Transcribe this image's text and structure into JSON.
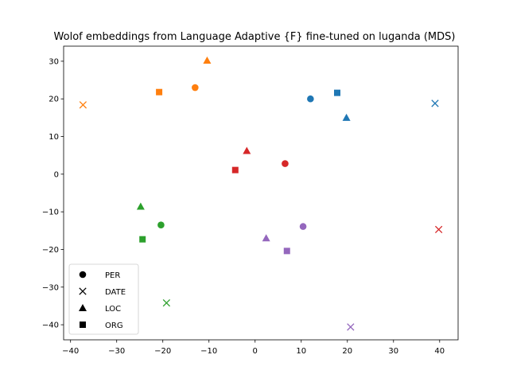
{
  "chart_data": {
    "type": "scatter",
    "title": "Wolof embeddings from Language Adaptive {F} fine-tuned on luganda (MDS)",
    "xlabel": "",
    "ylabel": "",
    "xlim": [
      -41.5,
      44
    ],
    "ylim": [
      -44,
      34
    ],
    "xticks": [
      -40,
      -30,
      -20,
      -10,
      0,
      10,
      20,
      30,
      40
    ],
    "yticks": [
      -40,
      -30,
      -20,
      -10,
      0,
      10,
      20,
      30
    ],
    "grid": false,
    "legend_position": "lower-left",
    "legend": [
      {
        "label": "PER",
        "marker": "circle"
      },
      {
        "label": "DATE",
        "marker": "x"
      },
      {
        "label": "LOC",
        "marker": "triangle"
      },
      {
        "label": "ORG",
        "marker": "square"
      }
    ],
    "groups": [
      {
        "color": "#1f77b4",
        "points": [
          {
            "marker": "circle",
            "x": 12.0,
            "y": 20.0
          },
          {
            "marker": "x",
            "x": 39.0,
            "y": 18.8
          },
          {
            "marker": "triangle",
            "x": 19.8,
            "y": 15.0
          },
          {
            "marker": "square",
            "x": 17.8,
            "y": 21.6
          }
        ]
      },
      {
        "color": "#ff7f0e",
        "points": [
          {
            "marker": "circle",
            "x": -13.0,
            "y": 23.0
          },
          {
            "marker": "x",
            "x": -37.3,
            "y": 18.4
          },
          {
            "marker": "triangle",
            "x": -10.4,
            "y": 30.2
          },
          {
            "marker": "square",
            "x": -20.8,
            "y": 21.8
          }
        ]
      },
      {
        "color": "#2ca02c",
        "points": [
          {
            "marker": "circle",
            "x": -20.4,
            "y": -13.5
          },
          {
            "marker": "x",
            "x": -19.2,
            "y": -34.2
          },
          {
            "marker": "triangle",
            "x": -24.8,
            "y": -8.6
          },
          {
            "marker": "square",
            "x": -24.4,
            "y": -17.3
          }
        ]
      },
      {
        "color": "#d62728",
        "points": [
          {
            "marker": "circle",
            "x": 6.5,
            "y": 2.8
          },
          {
            "marker": "x",
            "x": 39.8,
            "y": -14.7
          },
          {
            "marker": "triangle",
            "x": -1.8,
            "y": 6.2
          },
          {
            "marker": "square",
            "x": -4.3,
            "y": 1.1
          }
        ]
      },
      {
        "color": "#9467bd",
        "points": [
          {
            "marker": "circle",
            "x": 10.4,
            "y": -13.9
          },
          {
            "marker": "x",
            "x": 20.7,
            "y": -40.6
          },
          {
            "marker": "triangle",
            "x": 2.4,
            "y": -17.0
          },
          {
            "marker": "square",
            "x": 6.9,
            "y": -20.4
          }
        ]
      }
    ]
  }
}
